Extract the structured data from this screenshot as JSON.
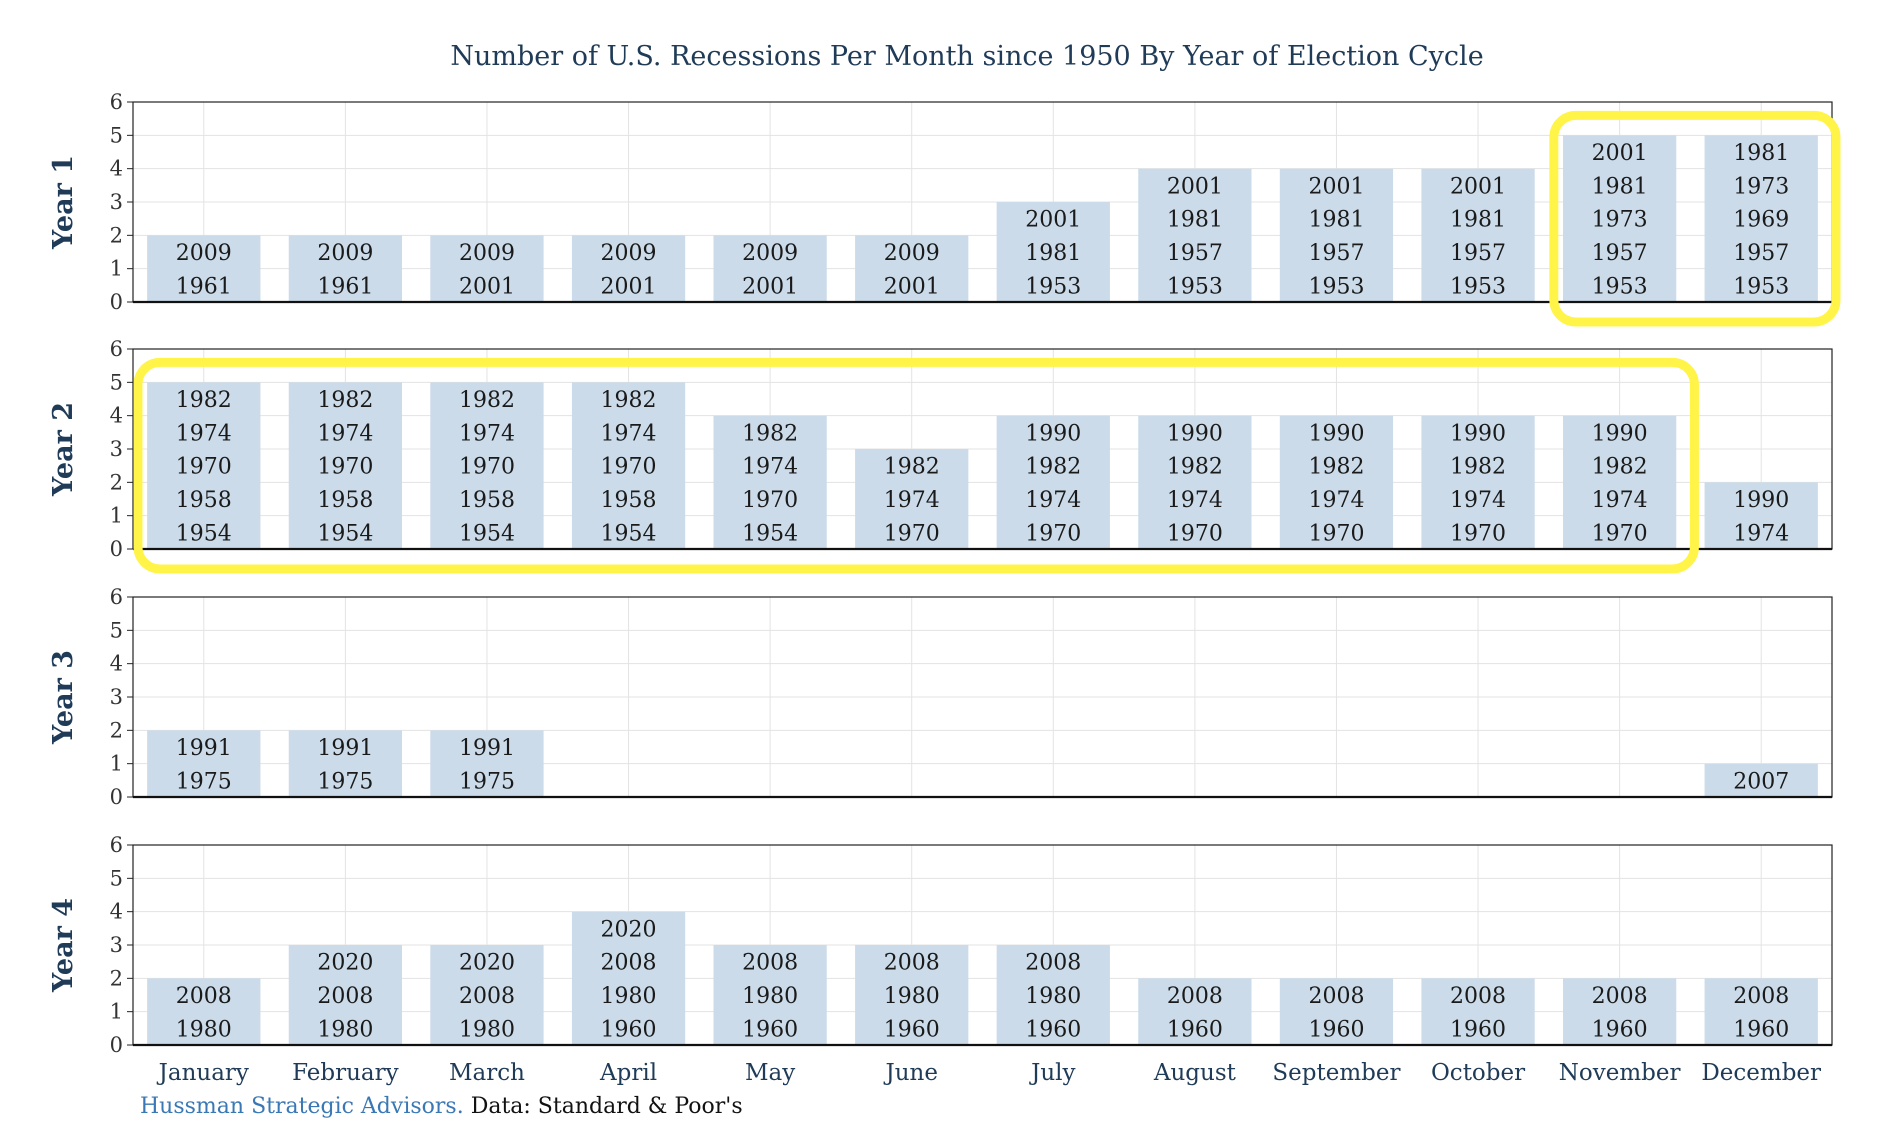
{
  "colors": {
    "bar": "#cbdbe9",
    "grid": "#e3e3e3",
    "frame": "#222222",
    "highlight": "#fff447",
    "title": "#1f3b57"
  },
  "footer": {
    "source": "Hussman Strategic Advisors.",
    "data": "Data: Standard & Poor's"
  },
  "chart_data": {
    "type": "bar",
    "title": "Number of U.S. Recessions Per Month since 1950 By Year of Election Cycle",
    "categories": [
      "January",
      "February",
      "March",
      "April",
      "May",
      "June",
      "July",
      "August",
      "September",
      "October",
      "November",
      "December"
    ],
    "ylim": [
      0,
      6
    ],
    "yticks": [
      0,
      1,
      2,
      3,
      4,
      5,
      6
    ],
    "grid": true,
    "panels": [
      {
        "name": "Year 1",
        "values": [
          2,
          2,
          2,
          2,
          2,
          2,
          3,
          4,
          4,
          4,
          5,
          5
        ],
        "years": [
          [
            "1961",
            "2009"
          ],
          [
            "1961",
            "2009"
          ],
          [
            "2001",
            "2009"
          ],
          [
            "2001",
            "2009"
          ],
          [
            "2001",
            "2009"
          ],
          [
            "2001",
            "2009"
          ],
          [
            "1953",
            "1981",
            "2001"
          ],
          [
            "1953",
            "1957",
            "1981",
            "2001"
          ],
          [
            "1953",
            "1957",
            "1981",
            "2001"
          ],
          [
            "1953",
            "1957",
            "1981",
            "2001"
          ],
          [
            "1953",
            "1957",
            "1973",
            "1981",
            "2001"
          ],
          [
            "1953",
            "1957",
            "1969",
            "1973",
            "1981"
          ]
        ],
        "highlight": [
          10,
          11
        ]
      },
      {
        "name": "Year 2",
        "values": [
          5,
          5,
          5,
          5,
          4,
          3,
          4,
          4,
          4,
          4,
          4,
          2
        ],
        "years": [
          [
            "1954",
            "1958",
            "1970",
            "1974",
            "1982"
          ],
          [
            "1954",
            "1958",
            "1970",
            "1974",
            "1982"
          ],
          [
            "1954",
            "1958",
            "1970",
            "1974",
            "1982"
          ],
          [
            "1954",
            "1958",
            "1970",
            "1974",
            "1982"
          ],
          [
            "1954",
            "1970",
            "1974",
            "1982"
          ],
          [
            "1970",
            "1974",
            "1982"
          ],
          [
            "1970",
            "1974",
            "1982",
            "1990"
          ],
          [
            "1970",
            "1974",
            "1982",
            "1990"
          ],
          [
            "1970",
            "1974",
            "1982",
            "1990"
          ],
          [
            "1970",
            "1974",
            "1982",
            "1990"
          ],
          [
            "1970",
            "1974",
            "1982",
            "1990"
          ],
          [
            "1974",
            "1990"
          ]
        ],
        "highlight": [
          0,
          10
        ]
      },
      {
        "name": "Year 3",
        "values": [
          2,
          2,
          2,
          0,
          0,
          0,
          0,
          0,
          0,
          0,
          0,
          1
        ],
        "years": [
          [
            "1975",
            "1991"
          ],
          [
            "1975",
            "1991"
          ],
          [
            "1975",
            "1991"
          ],
          [],
          [],
          [],
          [],
          [],
          [],
          [],
          [],
          [
            "2007"
          ]
        ]
      },
      {
        "name": "Year 4",
        "values": [
          2,
          3,
          3,
          4,
          3,
          3,
          3,
          2,
          2,
          2,
          2,
          2
        ],
        "years": [
          [
            "1980",
            "2008"
          ],
          [
            "1980",
            "2008",
            "2020"
          ],
          [
            "1980",
            "2008",
            "2020"
          ],
          [
            "1960",
            "1980",
            "2008",
            "2020"
          ],
          [
            "1960",
            "1980",
            "2008"
          ],
          [
            "1960",
            "1980",
            "2008"
          ],
          [
            "1960",
            "1980",
            "2008"
          ],
          [
            "1960",
            "2008"
          ],
          [
            "1960",
            "2008"
          ],
          [
            "1960",
            "2008"
          ],
          [
            "1960",
            "2008"
          ],
          [
            "1960",
            "2008"
          ]
        ]
      }
    ]
  }
}
